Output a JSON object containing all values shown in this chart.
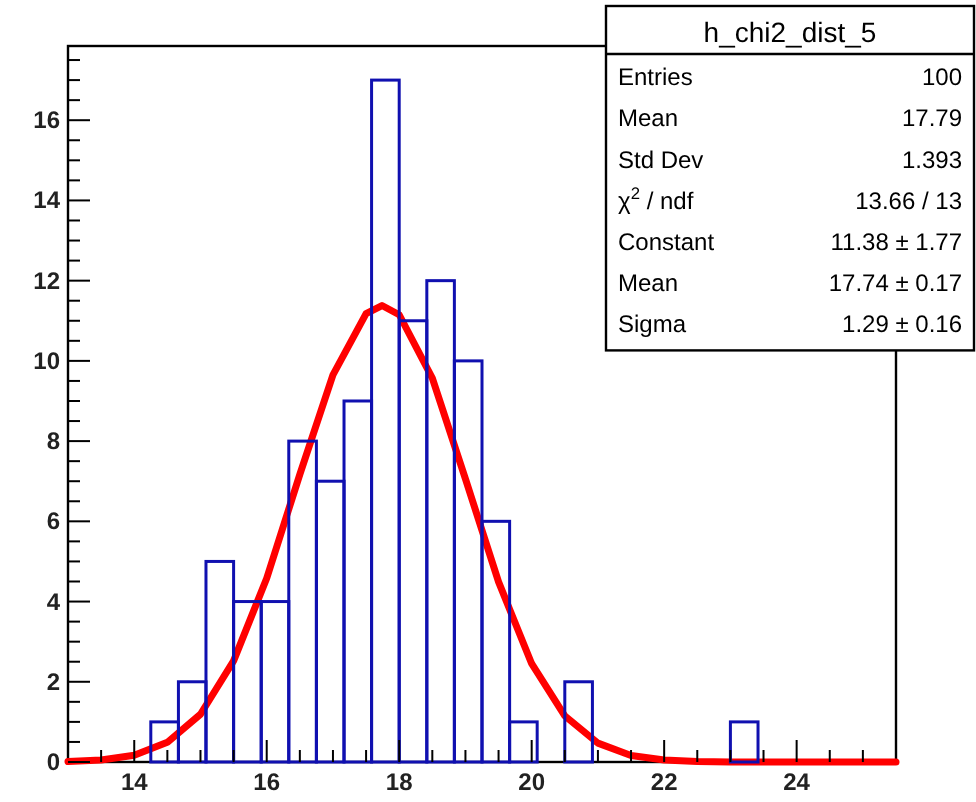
{
  "chart_data": [
    {
      "type": "histogram",
      "bins": [
        13,
        13.417,
        13.833,
        14.25,
        14.667,
        15.083,
        15.5,
        15.917,
        16.333,
        16.75,
        17.167,
        17.583,
        18,
        18.417,
        18.833,
        19.25,
        19.667,
        20.083,
        20.5,
        20.917,
        21.333,
        21.75,
        22.167,
        22.583,
        23,
        23.417,
        23.833,
        24.25,
        24.667,
        25.083,
        25.5
      ],
      "values": [
        0,
        0,
        0,
        1,
        2,
        5,
        4,
        4,
        8,
        7,
        9,
        17,
        11,
        12,
        10,
        6,
        1,
        0,
        2,
        0,
        0,
        0,
        0,
        0,
        1,
        0,
        0,
        0,
        0,
        0
      ],
      "color": "#1010b0",
      "series": [
        {
          "type": "line",
          "color": "#ff0000",
          "x": [
            13,
            13.5,
            14,
            14.5,
            15,
            15.5,
            16,
            16.5,
            17,
            17.5,
            17.74,
            18,
            18.5,
            19,
            19.5,
            20,
            20.5,
            21,
            21.5,
            22,
            22.5,
            23,
            24,
            25,
            25.5
          ],
          "values": [
            0.01,
            0.05,
            0.17,
            0.49,
            1.19,
            2.52,
            4.58,
            7.17,
            9.65,
            11.18,
            11.38,
            11.15,
            9.57,
            7.06,
            4.49,
            2.45,
            1.15,
            0.47,
            0.16,
            0.05,
            0.01,
            0,
            0,
            0,
            0
          ]
        }
      ],
      "xlim": [
        13,
        25.5
      ],
      "xticks": [
        {
          "value": 13.5,
          "label": null
        },
        14,
        {
          "value": 14.5,
          "label": null
        },
        {
          "value": 15,
          "label": null
        },
        {
          "value": 15.5,
          "label": null
        },
        16,
        {
          "value": 16.5,
          "label": null
        },
        {
          "value": 17,
          "label": null
        },
        {
          "value": 17.5,
          "label": null
        },
        18,
        {
          "value": 18.5,
          "label": null
        },
        {
          "value": 19,
          "label": null
        },
        {
          "value": 19.5,
          "label": null
        },
        20,
        {
          "value": 20.5,
          "label": null
        },
        {
          "value": 21,
          "label": null
        },
        {
          "value": 21.5,
          "label": null
        },
        22,
        {
          "value": 22.5,
          "label": null
        },
        {
          "value": 23,
          "label": null
        },
        {
          "value": 23.5,
          "label": null
        },
        24,
        {
          "value": 24.5,
          "label": null
        },
        {
          "value": 25,
          "label": null
        }
      ],
      "ylim": [
        0,
        17.85
      ],
      "yticks": [
        0,
        {
          "value": 0.5,
          "label": null
        },
        {
          "value": 1,
          "label": null
        },
        {
          "value": 1.5,
          "label": null
        },
        2,
        {
          "value": 2.5,
          "label": null
        },
        {
          "value": 3,
          "label": null
        },
        {
          "value": 3.5,
          "label": null
        },
        4,
        {
          "value": 4.5,
          "label": null
        },
        {
          "value": 5,
          "label": null
        },
        {
          "value": 5.5,
          "label": null
        },
        6,
        {
          "value": 6.5,
          "label": null
        },
        {
          "value": 7,
          "label": null
        },
        {
          "value": 7.5,
          "label": null
        },
        8,
        {
          "value": 8.5,
          "label": null
        },
        {
          "value": 9,
          "label": null
        },
        {
          "value": 9.5,
          "label": null
        },
        10,
        {
          "value": 10.5,
          "label": null
        },
        {
          "value": 11,
          "label": null
        },
        {
          "value": 11.5,
          "label": null
        },
        12,
        {
          "value": 12.5,
          "label": null
        },
        {
          "value": 13,
          "label": null
        },
        {
          "value": 13.5,
          "label": null
        },
        14,
        {
          "value": 14.5,
          "label": null
        },
        {
          "value": 15,
          "label": null
        },
        {
          "value": 15.5,
          "label": null
        },
        16,
        {
          "value": 16.5,
          "label": null
        },
        {
          "value": 17,
          "label": null
        },
        {
          "value": 17.5,
          "label": null
        }
      ],
      "annotations": [
        "h_chi2_dist_5",
        "Entries",
        "100",
        "Mean",
        "17.79",
        "Std Dev",
        "1.393",
        "χ$^{2}$ / ndf",
        "13.66 / 13",
        "Constant",
        "11.38 ± 1.77",
        "Mean",
        "17.74 ± 0.17",
        "Sigma",
        "1.29 ± 0.16"
      ]
    }
  ]
}
